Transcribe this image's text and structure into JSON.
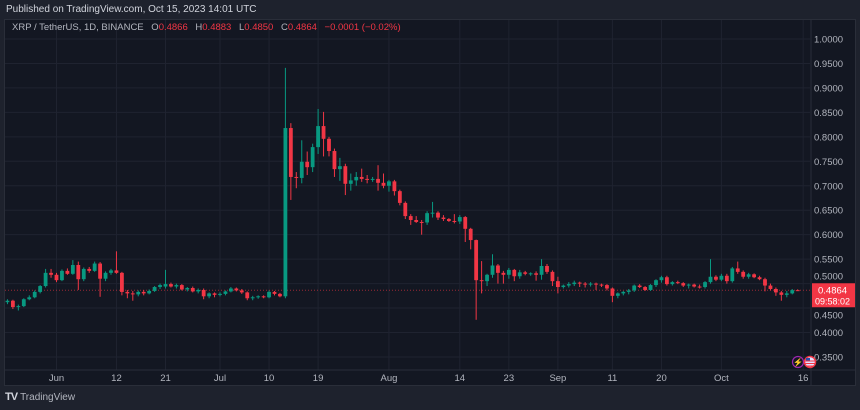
{
  "header": {
    "published": "Published on TradingView.com, Oct 15, 2023 14:01 UTC"
  },
  "legend": {
    "symbol": "XRP / TetherUS, 1D, BINANCE",
    "o_label": "O",
    "o": "0.4866",
    "h_label": "H",
    "h": "0.4883",
    "l_label": "L",
    "l": "0.4850",
    "c_label": "C",
    "c": "0.4864",
    "change": "−0.0001 (−0.02%)"
  },
  "price_label": {
    "price": "0.4864",
    "countdown": "09:58:02"
  },
  "footer": {
    "brand": "TradingView"
  },
  "colors": {
    "up": "#089981",
    "down": "#f23645",
    "background": "#131722",
    "grid": "#1f2330",
    "last_price_line": "#f23645"
  },
  "icons": [
    "lightning-icon",
    "us-flag-icon"
  ],
  "chart_data": {
    "type": "candlestick",
    "title": "XRP / TetherUS, 1D, BINANCE",
    "ylim": [
      0.33,
      1.02
    ],
    "y_ticks": [
      "1.0000",
      "0.9500",
      "0.9000",
      "0.8500",
      "0.8000",
      "0.7500",
      "0.7000",
      "0.6500",
      "0.6000",
      "0.5500",
      "0.5000",
      "0.4500",
      "0.4000",
      "0.3500"
    ],
    "x_ticks": [
      {
        "date": "2023-06-01",
        "label": "Jun"
      },
      {
        "date": "2023-06-12",
        "label": "12"
      },
      {
        "date": "2023-06-21",
        "label": "21"
      },
      {
        "date": "2023-07-01",
        "label": "Jul"
      },
      {
        "date": "2023-07-10",
        "label": "10"
      },
      {
        "date": "2023-07-19",
        "label": "19"
      },
      {
        "date": "2023-08-01",
        "label": "Aug"
      },
      {
        "date": "2023-08-14",
        "label": "14"
      },
      {
        "date": "2023-08-23",
        "label": "23"
      },
      {
        "date": "2023-09-01",
        "label": "Sep"
      },
      {
        "date": "2023-09-11",
        "label": "11"
      },
      {
        "date": "2023-09-20",
        "label": "20"
      },
      {
        "date": "2023-10-01",
        "label": "Oct"
      },
      {
        "date": "2023-10-16",
        "label": "16"
      }
    ],
    "xlim": [
      "2023-05-22",
      "2023-10-17"
    ],
    "grid": true,
    "last_price": 0.4864,
    "columns": [
      "date",
      "open",
      "high",
      "low",
      "close"
    ],
    "candles": [
      [
        "2023-05-23",
        0.462,
        0.468,
        0.458,
        0.465
      ],
      [
        "2023-05-24",
        0.465,
        0.467,
        0.448,
        0.452
      ],
      [
        "2023-05-25",
        0.452,
        0.457,
        0.445,
        0.454
      ],
      [
        "2023-05-26",
        0.454,
        0.47,
        0.452,
        0.468
      ],
      [
        "2023-05-27",
        0.468,
        0.476,
        0.466,
        0.472
      ],
      [
        "2023-05-28",
        0.472,
        0.486,
        0.47,
        0.483
      ],
      [
        "2023-05-29",
        0.483,
        0.497,
        0.48,
        0.495
      ],
      [
        "2023-05-30",
        0.495,
        0.53,
        0.492,
        0.522
      ],
      [
        "2023-05-31",
        0.522,
        0.53,
        0.512,
        0.518
      ],
      [
        "2023-06-01",
        0.518,
        0.522,
        0.503,
        0.507
      ],
      [
        "2023-06-02",
        0.507,
        0.529,
        0.505,
        0.526
      ],
      [
        "2023-06-03",
        0.526,
        0.531,
        0.518,
        0.52
      ],
      [
        "2023-06-04",
        0.52,
        0.548,
        0.518,
        0.538
      ],
      [
        "2023-06-05",
        0.538,
        0.545,
        0.487,
        0.509
      ],
      [
        "2023-06-06",
        0.509,
        0.533,
        0.505,
        0.53
      ],
      [
        "2023-06-07",
        0.53,
        0.534,
        0.522,
        0.526
      ],
      [
        "2023-06-08",
        0.526,
        0.545,
        0.524,
        0.541
      ],
      [
        "2023-06-09",
        0.541,
        0.544,
        0.473,
        0.51
      ],
      [
        "2023-06-10",
        0.51,
        0.525,
        0.505,
        0.522
      ],
      [
        "2023-06-11",
        0.522,
        0.53,
        0.518,
        0.527
      ],
      [
        "2023-06-12",
        0.527,
        0.566,
        0.52,
        0.522
      ],
      [
        "2023-06-13",
        0.522,
        0.524,
        0.476,
        0.483
      ],
      [
        "2023-06-14",
        0.483,
        0.487,
        0.47,
        0.48
      ],
      [
        "2023-06-15",
        0.48,
        0.485,
        0.465,
        0.478
      ],
      [
        "2023-06-16",
        0.478,
        0.486,
        0.474,
        0.483
      ],
      [
        "2023-06-17",
        0.483,
        0.487,
        0.476,
        0.48
      ],
      [
        "2023-06-18",
        0.48,
        0.488,
        0.478,
        0.485
      ],
      [
        "2023-06-19",
        0.485,
        0.495,
        0.483,
        0.493
      ],
      [
        "2023-06-20",
        0.493,
        0.5,
        0.489,
        0.497
      ],
      [
        "2023-06-21",
        0.494,
        0.528,
        0.49,
        0.499
      ],
      [
        "2023-06-22",
        0.499,
        0.502,
        0.492,
        0.494
      ],
      [
        "2023-06-23",
        0.494,
        0.5,
        0.49,
        0.497
      ],
      [
        "2023-06-24",
        0.497,
        0.499,
        0.486,
        0.488
      ],
      [
        "2023-06-25",
        0.488,
        0.493,
        0.484,
        0.491
      ],
      [
        "2023-06-26",
        0.491,
        0.494,
        0.482,
        0.484
      ],
      [
        "2023-06-27",
        0.484,
        0.49,
        0.48,
        0.487
      ],
      [
        "2023-06-28",
        0.487,
        0.49,
        0.468,
        0.474
      ],
      [
        "2023-06-29",
        0.474,
        0.482,
        0.47,
        0.48
      ],
      [
        "2023-06-30",
        0.48,
        0.482,
        0.472,
        0.477
      ],
      [
        "2023-07-01",
        0.477,
        0.482,
        0.474,
        0.479
      ],
      [
        "2023-07-02",
        0.479,
        0.486,
        0.476,
        0.484
      ],
      [
        "2023-07-03",
        0.484,
        0.493,
        0.482,
        0.49
      ],
      [
        "2023-07-04",
        0.49,
        0.492,
        0.484,
        0.486
      ],
      [
        "2023-07-05",
        0.486,
        0.489,
        0.479,
        0.482
      ],
      [
        "2023-07-06",
        0.482,
        0.484,
        0.466,
        0.47
      ],
      [
        "2023-07-07",
        0.47,
        0.475,
        0.466,
        0.472
      ],
      [
        "2023-07-08",
        0.472,
        0.476,
        0.469,
        0.474
      ],
      [
        "2023-07-09",
        0.474,
        0.476,
        0.47,
        0.472
      ],
      [
        "2023-07-10",
        0.472,
        0.486,
        0.47,
        0.483
      ],
      [
        "2023-07-11",
        0.483,
        0.485,
        0.476,
        0.479
      ],
      [
        "2023-07-12",
        0.479,
        0.481,
        0.472,
        0.474
      ],
      [
        "2023-07-13",
        0.474,
        0.941,
        0.47,
        0.818
      ],
      [
        "2023-07-14",
        0.818,
        0.828,
        0.671,
        0.718
      ],
      [
        "2023-07-15",
        0.718,
        0.728,
        0.695,
        0.716
      ],
      [
        "2023-07-16",
        0.716,
        0.793,
        0.705,
        0.749
      ],
      [
        "2023-07-17",
        0.749,
        0.77,
        0.722,
        0.738
      ],
      [
        "2023-07-18",
        0.738,
        0.786,
        0.728,
        0.779
      ],
      [
        "2023-07-19",
        0.779,
        0.857,
        0.765,
        0.822
      ],
      [
        "2023-07-20",
        0.822,
        0.851,
        0.76,
        0.796
      ],
      [
        "2023-07-21",
        0.796,
        0.8,
        0.76,
        0.771
      ],
      [
        "2023-07-22",
        0.771,
        0.776,
        0.718,
        0.734
      ],
      [
        "2023-07-23",
        0.734,
        0.757,
        0.71,
        0.74
      ],
      [
        "2023-07-24",
        0.74,
        0.745,
        0.681,
        0.704
      ],
      [
        "2023-07-25",
        0.704,
        0.725,
        0.69,
        0.711
      ],
      [
        "2023-07-26",
        0.711,
        0.728,
        0.7,
        0.718
      ],
      [
        "2023-07-27",
        0.718,
        0.735,
        0.708,
        0.714
      ],
      [
        "2023-07-28",
        0.714,
        0.722,
        0.705,
        0.713
      ],
      [
        "2023-07-29",
        0.713,
        0.718,
        0.708,
        0.714
      ],
      [
        "2023-07-30",
        0.714,
        0.742,
        0.69,
        0.706
      ],
      [
        "2023-07-31",
        0.706,
        0.725,
        0.695,
        0.7
      ],
      [
        "2023-08-01",
        0.7,
        0.712,
        0.688,
        0.709
      ],
      [
        "2023-08-02",
        0.709,
        0.712,
        0.68,
        0.689
      ],
      [
        "2023-08-03",
        0.689,
        0.692,
        0.66,
        0.665
      ],
      [
        "2023-08-04",
        0.665,
        0.668,
        0.632,
        0.638
      ],
      [
        "2023-08-05",
        0.638,
        0.642,
        0.62,
        0.63
      ],
      [
        "2023-08-06",
        0.63,
        0.638,
        0.624,
        0.626
      ],
      [
        "2023-08-07",
        0.626,
        0.63,
        0.6,
        0.625
      ],
      [
        "2023-08-08",
        0.625,
        0.648,
        0.62,
        0.644
      ],
      [
        "2023-08-09",
        0.644,
        0.667,
        0.635,
        0.645
      ],
      [
        "2023-08-10",
        0.645,
        0.648,
        0.63,
        0.635
      ],
      [
        "2023-08-11",
        0.635,
        0.64,
        0.628,
        0.632
      ],
      [
        "2023-08-12",
        0.632,
        0.634,
        0.626,
        0.628
      ],
      [
        "2023-08-13",
        0.628,
        0.642,
        0.623,
        0.627
      ],
      [
        "2023-08-14",
        0.627,
        0.64,
        0.622,
        0.636
      ],
      [
        "2023-08-15",
        0.636,
        0.638,
        0.585,
        0.612
      ],
      [
        "2023-08-16",
        0.612,
        0.614,
        0.57,
        0.589
      ],
      [
        "2023-08-17",
        0.589,
        0.59,
        0.426,
        0.507
      ],
      [
        "2023-08-18",
        0.507,
        0.546,
        0.48,
        0.505
      ],
      [
        "2023-08-19",
        0.505,
        0.52,
        0.495,
        0.518
      ],
      [
        "2023-08-20",
        0.518,
        0.56,
        0.512,
        0.537
      ],
      [
        "2023-08-21",
        0.537,
        0.54,
        0.5,
        0.522
      ],
      [
        "2023-08-22",
        0.522,
        0.526,
        0.5,
        0.518
      ],
      [
        "2023-08-23",
        0.518,
        0.532,
        0.51,
        0.528
      ],
      [
        "2023-08-24",
        0.528,
        0.53,
        0.505,
        0.515
      ],
      [
        "2023-08-25",
        0.515,
        0.528,
        0.51,
        0.523
      ],
      [
        "2023-08-26",
        0.523,
        0.526,
        0.517,
        0.52
      ],
      [
        "2023-08-27",
        0.52,
        0.523,
        0.516,
        0.521
      ],
      [
        "2023-08-28",
        0.521,
        0.525,
        0.506,
        0.518
      ],
      [
        "2023-08-29",
        0.518,
        0.55,
        0.508,
        0.536
      ],
      [
        "2023-08-30",
        0.536,
        0.54,
        0.52,
        0.524
      ],
      [
        "2023-08-31",
        0.524,
        0.527,
        0.495,
        0.505
      ],
      [
        "2023-09-01",
        0.505,
        0.514,
        0.48,
        0.493
      ],
      [
        "2023-09-02",
        0.493,
        0.498,
        0.49,
        0.496
      ],
      [
        "2023-09-03",
        0.496,
        0.503,
        0.492,
        0.499
      ],
      [
        "2023-09-04",
        0.499,
        0.506,
        0.495,
        0.502
      ],
      [
        "2023-09-05",
        0.502,
        0.504,
        0.493,
        0.5
      ],
      [
        "2023-09-06",
        0.5,
        0.503,
        0.492,
        0.498
      ],
      [
        "2023-09-07",
        0.498,
        0.503,
        0.494,
        0.5
      ],
      [
        "2023-09-08",
        0.5,
        0.502,
        0.487,
        0.498
      ],
      [
        "2023-09-09",
        0.498,
        0.5,
        0.493,
        0.497
      ],
      [
        "2023-09-10",
        0.497,
        0.499,
        0.486,
        0.49
      ],
      [
        "2023-09-11",
        0.49,
        0.492,
        0.462,
        0.475
      ],
      [
        "2023-09-12",
        0.475,
        0.482,
        0.47,
        0.48
      ],
      [
        "2023-09-13",
        0.48,
        0.485,
        0.476,
        0.483
      ],
      [
        "2023-09-14",
        0.483,
        0.489,
        0.478,
        0.486
      ],
      [
        "2023-09-15",
        0.486,
        0.498,
        0.483,
        0.496
      ],
      [
        "2023-09-16",
        0.496,
        0.499,
        0.491,
        0.493
      ],
      [
        "2023-09-17",
        0.493,
        0.495,
        0.485,
        0.487
      ],
      [
        "2023-09-18",
        0.487,
        0.499,
        0.485,
        0.497
      ],
      [
        "2023-09-19",
        0.497,
        0.509,
        0.493,
        0.507
      ],
      [
        "2023-09-20",
        0.507,
        0.516,
        0.502,
        0.513
      ],
      [
        "2023-09-21",
        0.513,
        0.516,
        0.496,
        0.499
      ],
      [
        "2023-09-22",
        0.499,
        0.505,
        0.496,
        0.503
      ],
      [
        "2023-09-23",
        0.503,
        0.506,
        0.499,
        0.501
      ],
      [
        "2023-09-24",
        0.501,
        0.503,
        0.493,
        0.496
      ],
      [
        "2023-09-25",
        0.496,
        0.5,
        0.49,
        0.498
      ],
      [
        "2023-09-26",
        0.498,
        0.5,
        0.492,
        0.494
      ],
      [
        "2023-09-27",
        0.494,
        0.498,
        0.49,
        0.493
      ],
      [
        "2023-09-28",
        0.493,
        0.505,
        0.49,
        0.503
      ],
      [
        "2023-09-29",
        0.503,
        0.55,
        0.5,
        0.514
      ],
      [
        "2023-09-30",
        0.514,
        0.517,
        0.505,
        0.508
      ],
      [
        "2023-10-01",
        0.508,
        0.52,
        0.505,
        0.516
      ],
      [
        "2023-10-02",
        0.516,
        0.52,
        0.5,
        0.505
      ],
      [
        "2023-10-03",
        0.505,
        0.534,
        0.502,
        0.531
      ],
      [
        "2023-10-04",
        0.531,
        0.545,
        0.52,
        0.524
      ],
      [
        "2023-10-05",
        0.524,
        0.527,
        0.51,
        0.514
      ],
      [
        "2023-10-06",
        0.514,
        0.522,
        0.51,
        0.519
      ],
      [
        "2023-10-07",
        0.519,
        0.521,
        0.511,
        0.513
      ],
      [
        "2023-10-08",
        0.513,
        0.516,
        0.507,
        0.509
      ],
      [
        "2023-10-09",
        0.509,
        0.512,
        0.484,
        0.496
      ],
      [
        "2023-10-10",
        0.496,
        0.5,
        0.486,
        0.489
      ],
      [
        "2023-10-11",
        0.489,
        0.492,
        0.475,
        0.482
      ],
      [
        "2023-10-12",
        0.482,
        0.485,
        0.465,
        0.477
      ],
      [
        "2023-10-13",
        0.477,
        0.485,
        0.472,
        0.48
      ],
      [
        "2023-10-14",
        0.48,
        0.489,
        0.478,
        0.4866
      ],
      [
        "2023-10-15",
        0.4866,
        0.4883,
        0.485,
        0.4864
      ]
    ]
  }
}
